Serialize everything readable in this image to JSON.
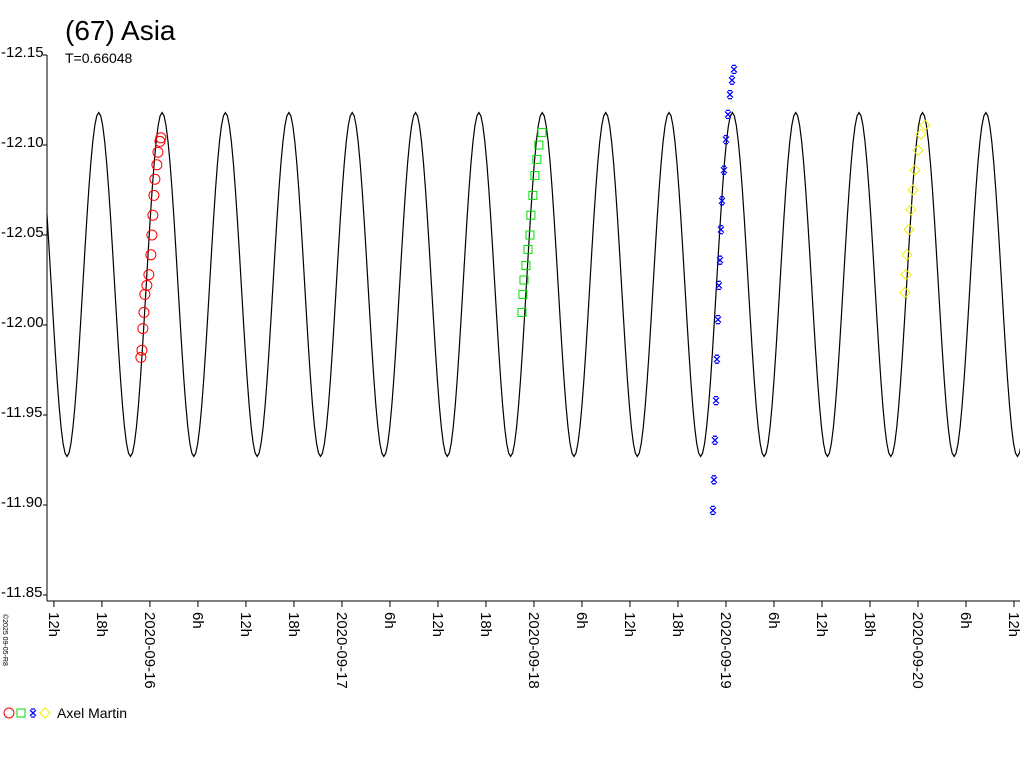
{
  "chart_data": {
    "type": "scatter",
    "title": "(67) Asia",
    "subtitle": "T=0.66048",
    "footer": "©2025 09-05-R8",
    "legend": {
      "label": "Axel Martin"
    },
    "ylim": [
      -12.15,
      -11.85
    ],
    "yticks": [
      -12.15,
      {
        "value": -12.1,
        "label": "-12.10"
      },
      -12.05,
      {
        "value": -12.0,
        "label": "-12.00"
      },
      -11.95,
      {
        "value": -11.9,
        "label": "-11.90"
      },
      -11.85
    ],
    "xlim": [
      "2020-09-15T11:08",
      "2020-09-20T12:45"
    ],
    "xticks": [
      {
        "value": "2020-09-15T12:00",
        "label": "12h"
      },
      {
        "value": "2020-09-15T18:00",
        "label": "18h"
      },
      {
        "value": "2020-09-16T00:00",
        "label": "2020-09-16"
      },
      {
        "value": "2020-09-16T06:00",
        "label": "6h"
      },
      {
        "value": "2020-09-16T12:00",
        "label": "12h"
      },
      {
        "value": "2020-09-16T18:00",
        "label": "18h"
      },
      {
        "value": "2020-09-17T00:00",
        "label": "2020-09-17"
      },
      {
        "value": "2020-09-17T06:00",
        "label": "6h"
      },
      {
        "value": "2020-09-17T12:00",
        "label": "12h"
      },
      {
        "value": "2020-09-17T18:00",
        "label": "18h"
      },
      {
        "value": "2020-09-18T00:00",
        "label": "2020-09-18"
      },
      {
        "value": "2020-09-18T06:00",
        "label": "6h"
      },
      {
        "value": "2020-09-18T12:00",
        "label": "12h"
      },
      {
        "value": "2020-09-18T18:00",
        "label": "18h"
      },
      {
        "value": "2020-09-19T00:00",
        "label": "2020-09-19"
      },
      {
        "value": "2020-09-19T06:00",
        "label": "6h"
      },
      {
        "value": "2020-09-19T12:00",
        "label": "12h"
      },
      {
        "value": "2020-09-19T18:00",
        "label": "18h"
      },
      {
        "value": "2020-09-20T00:00",
        "label": "2020-09-20"
      },
      {
        "value": "2020-09-20T06:00",
        "label": "6h"
      },
      {
        "value": "2020-09-20T12:00",
        "label": "12h"
      }
    ],
    "series": [
      {
        "color": "#000000",
        "marker": "line",
        "x": [
          "2020-09-15T09:41",
          "2020-09-15T13:38",
          "2020-09-15T17:36",
          "2020-09-15T21:34",
          "2020-09-16T01:31",
          "2020-09-16T05:29",
          "2020-09-16T09:26",
          "2020-09-16T13:24",
          "2020-09-16T17:22",
          "2020-09-16T21:19",
          "2020-09-17T01:17",
          "2020-09-17T05:14",
          "2020-09-17T09:12",
          "2020-09-17T13:10",
          "2020-09-17T17:07",
          "2020-09-17T21:05",
          "2020-09-18T01:02",
          "2020-09-18T05:00",
          "2020-09-18T08:58",
          "2020-09-18T12:55",
          "2020-09-18T16:53",
          "2020-09-18T20:50",
          "2020-09-19T00:48",
          "2020-09-19T04:46",
          "2020-09-19T08:43",
          "2020-09-19T12:41",
          "2020-09-19T16:38",
          "2020-09-19T20:36",
          "2020-09-20T00:34",
          "2020-09-20T04:31",
          "2020-09-20T08:29",
          "2020-09-20T12:26",
          "2020-09-20T16:24"
        ],
        "values": [
          -12.118,
          -11.927,
          -12.118,
          -11.927,
          -12.118,
          -11.927,
          -12.118,
          -11.927,
          -12.118,
          -11.927,
          -12.118,
          -11.927,
          -12.118,
          -11.927,
          -12.118,
          -11.927,
          -12.118,
          -11.927,
          -12.118,
          -11.927,
          -12.118,
          -11.927,
          -12.118,
          -11.927,
          -12.118,
          -11.927,
          -12.118,
          -11.927,
          -12.118,
          -11.927,
          -12.118,
          -11.927,
          -12.118
        ]
      },
      {
        "color": "#ff0000",
        "marker": "circle",
        "x": [
          "2020-09-15T22:52",
          "2020-09-15T23:00",
          "2020-09-15T23:07",
          "2020-09-15T23:15",
          "2020-09-15T23:22",
          "2020-09-15T23:37",
          "2020-09-15T23:52",
          "2020-09-16T00:07",
          "2020-09-16T00:15",
          "2020-09-16T00:22",
          "2020-09-16T00:30",
          "2020-09-16T00:37",
          "2020-09-16T00:52",
          "2020-09-16T01:00",
          "2020-09-16T01:15",
          "2020-09-16T01:22"
        ],
        "values": [
          -11.982,
          -11.986,
          -11.998,
          -12.007,
          -12.017,
          -12.022,
          -12.028,
          -12.039,
          -12.05,
          -12.061,
          -12.072,
          -12.081,
          -12.089,
          -12.096,
          -12.102,
          -12.104
        ]
      },
      {
        "color": "#00dd00",
        "marker": "square",
        "x": [
          "2020-09-17T22:30",
          "2020-09-17T22:37",
          "2020-09-17T22:45",
          "2020-09-17T23:00",
          "2020-09-17T23:15",
          "2020-09-17T23:30",
          "2020-09-17T23:37",
          "2020-09-17T23:52",
          "2020-09-18T00:07",
          "2020-09-18T00:22",
          "2020-09-18T00:37",
          "2020-09-18T01:00"
        ],
        "values": [
          -12.007,
          -12.017,
          -12.025,
          -12.033,
          -12.042,
          -12.05,
          -12.061,
          -12.072,
          -12.083,
          -12.092,
          -12.1,
          -12.107
        ]
      },
      {
        "color": "#0000ff",
        "marker": "star",
        "x": [
          "2020-09-18T22:22",
          "2020-09-18T22:30",
          "2020-09-18T22:37",
          "2020-09-18T22:45",
          "2020-09-18T22:52",
          "2020-09-18T23:00",
          "2020-09-18T23:07",
          "2020-09-18T23:15",
          "2020-09-18T23:22",
          "2020-09-18T23:30",
          "2020-09-18T23:45",
          "2020-09-19T00:00",
          "2020-09-19T00:15",
          "2020-09-19T00:30",
          "2020-09-19T00:45",
          "2020-09-19T01:00"
        ],
        "values": [
          -11.897,
          -11.914,
          -11.936,
          -11.958,
          -11.981,
          -12.003,
          -12.022,
          -12.036,
          -12.053,
          -12.069,
          -12.086,
          -12.103,
          -12.117,
          -12.128,
          -12.136,
          -12.142
        ]
      },
      {
        "color": "#eeee00",
        "marker": "diamond",
        "x": [
          "2020-09-19T22:22",
          "2020-09-19T22:30",
          "2020-09-19T22:37",
          "2020-09-19T22:52",
          "2020-09-19T23:07",
          "2020-09-19T23:22",
          "2020-09-19T23:37",
          "2020-09-20T00:00",
          "2020-09-20T00:22",
          "2020-09-20T00:52"
        ],
        "values": [
          -12.018,
          -12.028,
          -12.039,
          -12.053,
          -12.064,
          -12.075,
          -12.086,
          -12.097,
          -12.106,
          -12.111
        ]
      }
    ]
  }
}
